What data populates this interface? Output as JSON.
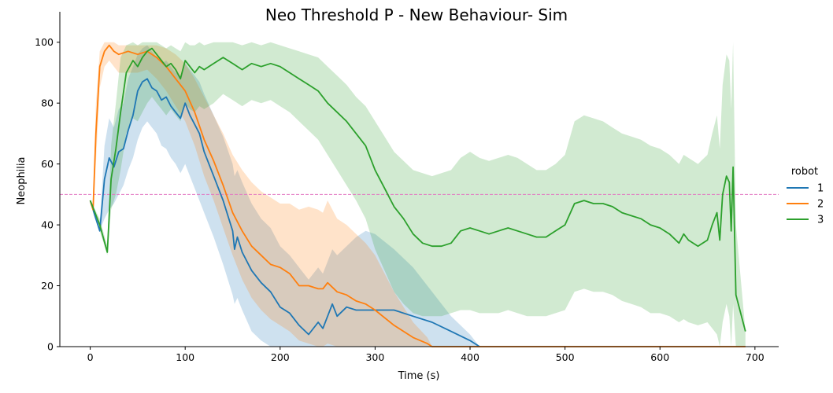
{
  "chart_data": {
    "type": "line",
    "title": "Neo Threshold P - New Behaviour- Sim",
    "xlabel": "Time (s)",
    "ylabel": "Neophilia",
    "xlim": [
      -32,
      725
    ],
    "ylim": [
      0,
      110
    ],
    "xticks": [
      0,
      100,
      200,
      300,
      400,
      500,
      600,
      700
    ],
    "yticks": [
      0,
      20,
      40,
      60,
      80,
      100
    ],
    "grid": false,
    "legend": {
      "title": "robot",
      "placement": "right"
    },
    "threshold": {
      "y": 50,
      "color": "#e377c2",
      "style": "dashed"
    },
    "series": [
      {
        "name": "1",
        "color": "#1f77b4",
        "x": [
          0,
          5,
          10,
          15,
          20,
          25,
          30,
          35,
          40,
          45,
          50,
          55,
          60,
          65,
          70,
          75,
          80,
          85,
          90,
          95,
          100,
          105,
          110,
          115,
          120,
          130,
          140,
          150,
          152,
          155,
          160,
          170,
          180,
          190,
          200,
          210,
          220,
          230,
          240,
          245,
          250,
          255,
          260,
          270,
          280,
          290,
          300,
          320,
          340,
          360,
          380,
          400,
          410
        ],
        "y": [
          48,
          43,
          38,
          55,
          62,
          59,
          64,
          65,
          71,
          76,
          84,
          87,
          88,
          85,
          84,
          81,
          82,
          79,
          77,
          75,
          80,
          76,
          73,
          70,
          64,
          56,
          48,
          38,
          32,
          36,
          31,
          25,
          21,
          18,
          13,
          11,
          7,
          4,
          8,
          6,
          10,
          14,
          10,
          13,
          12,
          12,
          12,
          12,
          10,
          8,
          5,
          2,
          0
        ],
        "lower": [
          48,
          42,
          38,
          42,
          45,
          47,
          50,
          53,
          58,
          62,
          68,
          72,
          74,
          72,
          70,
          66,
          65,
          62,
          60,
          57,
          60,
          56,
          52,
          48,
          44,
          36,
          27,
          17,
          14,
          16,
          12,
          5,
          2,
          0,
          0,
          0,
          0,
          0,
          0,
          0,
          0,
          0,
          0,
          0,
          0,
          0,
          0,
          0,
          0,
          0,
          0,
          0,
          0
        ],
        "upper": [
          48,
          45,
          40,
          66,
          75,
          72,
          78,
          80,
          88,
          92,
          96,
          98,
          99,
          97,
          95,
          93,
          94,
          92,
          90,
          89,
          93,
          91,
          89,
          87,
          83,
          76,
          69,
          60,
          56,
          58,
          54,
          47,
          42,
          39,
          33,
          30,
          26,
          22,
          26,
          24,
          28,
          32,
          30,
          33,
          36,
          38,
          37,
          32,
          26,
          18,
          10,
          4,
          0
        ]
      },
      {
        "name": "2",
        "color": "#ff7f0e",
        "x": [
          0,
          3,
          6,
          10,
          15,
          20,
          25,
          30,
          40,
          50,
          60,
          70,
          80,
          90,
          100,
          110,
          120,
          130,
          140,
          150,
          160,
          170,
          180,
          190,
          200,
          210,
          220,
          230,
          240,
          245,
          250,
          260,
          270,
          280,
          290,
          300,
          320,
          340,
          355,
          360,
          365,
          400,
          500,
          600,
          690
        ],
        "y": [
          48,
          45,
          70,
          92,
          97,
          99,
          97,
          96,
          97,
          96,
          97,
          95,
          92,
          88,
          84,
          77,
          68,
          61,
          53,
          44,
          38,
          33,
          30,
          27,
          26,
          24,
          20,
          20,
          19,
          19,
          21,
          18,
          17,
          15,
          14,
          12,
          7,
          3,
          1,
          0,
          0,
          0,
          0,
          0,
          0
        ],
        "lower": [
          48,
          44,
          60,
          85,
          92,
          94,
          92,
          90,
          90,
          90,
          91,
          88,
          84,
          79,
          74,
          66,
          56,
          48,
          39,
          30,
          22,
          16,
          12,
          9,
          7,
          5,
          2,
          1,
          0,
          0,
          1,
          0,
          0,
          0,
          0,
          0,
          0,
          0,
          0,
          0,
          0,
          0,
          0,
          0,
          0
        ],
        "upper": [
          48,
          47,
          80,
          97,
          100,
          100,
          100,
          99,
          99,
          99,
          99,
          99,
          98,
          96,
          93,
          88,
          82,
          76,
          70,
          63,
          58,
          54,
          51,
          49,
          47,
          47,
          45,
          46,
          45,
          44,
          48,
          42,
          40,
          37,
          34,
          30,
          18,
          8,
          3,
          0,
          0,
          0,
          0,
          0,
          0
        ]
      },
      {
        "name": "3",
        "color": "#2ca02c",
        "x": [
          0,
          10,
          18,
          22,
          27,
          32,
          38,
          45,
          50,
          55,
          60,
          65,
          70,
          75,
          80,
          85,
          90,
          95,
          100,
          105,
          110,
          115,
          120,
          130,
          140,
          150,
          160,
          170,
          180,
          190,
          200,
          210,
          220,
          230,
          240,
          250,
          260,
          270,
          280,
          290,
          300,
          310,
          320,
          330,
          340,
          350,
          360,
          370,
          380,
          390,
          400,
          410,
          420,
          430,
          440,
          450,
          460,
          470,
          480,
          490,
          500,
          510,
          520,
          530,
          540,
          550,
          560,
          570,
          580,
          590,
          600,
          610,
          620,
          625,
          630,
          640,
          650,
          655,
          660,
          663,
          666,
          670,
          673,
          675,
          677,
          680,
          690
        ],
        "y": [
          48,
          40,
          31,
          55,
          65,
          77,
          90,
          94,
          92,
          95,
          97,
          98,
          96,
          94,
          92,
          93,
          91,
          88,
          94,
          92,
          90,
          92,
          91,
          93,
          95,
          93,
          91,
          93,
          92,
          93,
          92,
          90,
          88,
          86,
          84,
          80,
          77,
          74,
          70,
          66,
          58,
          52,
          46,
          42,
          37,
          34,
          33,
          33,
          34,
          38,
          39,
          38,
          37,
          38,
          39,
          38,
          37,
          36,
          36,
          38,
          40,
          47,
          48,
          47,
          47,
          46,
          44,
          43,
          42,
          40,
          39,
          37,
          34,
          37,
          35,
          33,
          35,
          40,
          44,
          35,
          50,
          56,
          54,
          38,
          59,
          17,
          5
        ],
        "lower": [
          48,
          38,
          30,
          45,
          50,
          58,
          70,
          75,
          74,
          77,
          80,
          82,
          80,
          78,
          76,
          78,
          76,
          74,
          80,
          78,
          77,
          79,
          78,
          80,
          83,
          81,
          79,
          81,
          80,
          81,
          79,
          77,
          74,
          71,
          68,
          63,
          58,
          53,
          48,
          42,
          32,
          25,
          18,
          14,
          11,
          10,
          10,
          10,
          11,
          12,
          12,
          11,
          11,
          11,
          12,
          11,
          10,
          10,
          10,
          11,
          12,
          18,
          19,
          18,
          18,
          17,
          15,
          14,
          13,
          11,
          11,
          10,
          8,
          9,
          8,
          7,
          8,
          6,
          4,
          0,
          8,
          14,
          10,
          0,
          14,
          0,
          0
        ],
        "upper": [
          48,
          42,
          33,
          66,
          80,
          95,
          99,
          100,
          99,
          100,
          100,
          100,
          100,
          99,
          98,
          99,
          98,
          97,
          100,
          99,
          99,
          100,
          99,
          100,
          100,
          100,
          99,
          100,
          99,
          100,
          99,
          98,
          97,
          96,
          95,
          92,
          89,
          86,
          82,
          79,
          74,
          69,
          64,
          61,
          58,
          57,
          56,
          57,
          58,
          62,
          64,
          62,
          61,
          62,
          63,
          62,
          60,
          58,
          58,
          60,
          63,
          74,
          76,
          75,
          74,
          72,
          70,
          69,
          68,
          66,
          65,
          63,
          60,
          63,
          62,
          60,
          63,
          70,
          76,
          65,
          86,
          96,
          94,
          78,
          100,
          40,
          5
        ]
      }
    ]
  }
}
